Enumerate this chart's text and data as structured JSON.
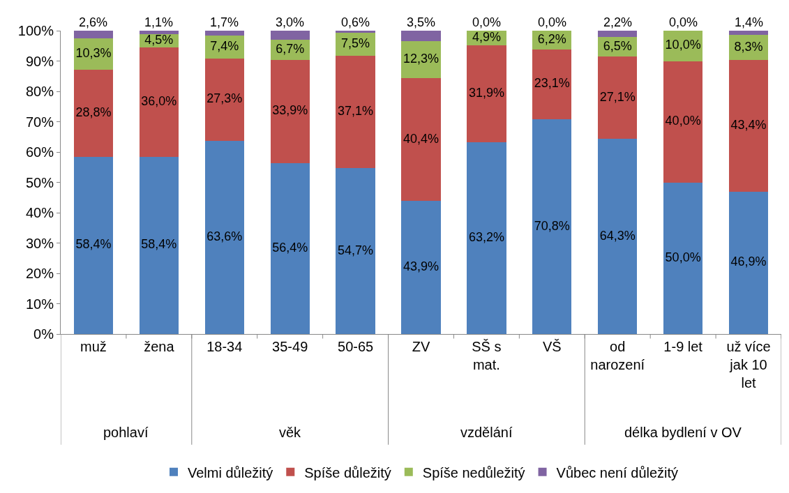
{
  "chart_data": {
    "type": "bar",
    "stacked": true,
    "categories": [
      "muž",
      "žena",
      "18-34",
      "35-49",
      "50-65",
      "ZV",
      "SŠ s mat.",
      "VŠ",
      "od narození",
      "1-9 let",
      "už více jak 10 let"
    ],
    "series": [
      {
        "name": "Velmi důležitý",
        "color": "#4f81bd",
        "values": [
          58.4,
          58.4,
          63.6,
          56.4,
          54.7,
          43.9,
          63.2,
          70.8,
          64.3,
          50.0,
          46.9
        ],
        "value_labels": [
          "58,4%",
          "58,4%",
          "63,6%",
          "56,4%",
          "54,7%",
          "43,9%",
          "63,2%",
          "70,8%",
          "64,3%",
          "50,0%",
          "46,9%"
        ]
      },
      {
        "name": "Spíše důležitý",
        "color": "#c0504d",
        "values": [
          28.8,
          36.0,
          27.3,
          33.9,
          37.1,
          40.4,
          31.9,
          23.1,
          27.1,
          40.0,
          43.4
        ],
        "value_labels": [
          "28,8%",
          "36,0%",
          "27,3%",
          "33,9%",
          "37,1%",
          "40,4%",
          "31,9%",
          "23,1%",
          "27,1%",
          "40,0%",
          "43,4%"
        ]
      },
      {
        "name": "Spíše nedůležitý",
        "color": "#9bbb59",
        "values": [
          10.3,
          4.5,
          7.4,
          6.7,
          7.5,
          12.3,
          4.9,
          6.2,
          6.5,
          10.0,
          8.3
        ],
        "value_labels": [
          "10,3%",
          "4,5%",
          "7,4%",
          "6,7%",
          "7,5%",
          "12,3%",
          "4,9%",
          "6,2%",
          "6,5%",
          "10,0%",
          "8,3%"
        ]
      },
      {
        "name": "Vůbec není důležitý",
        "color": "#8064a2",
        "values": [
          2.6,
          1.1,
          1.7,
          3.0,
          0.6,
          3.5,
          0.0,
          0.0,
          2.2,
          0.0,
          1.4
        ],
        "value_labels": [
          "2,6%",
          "1,1%",
          "1,7%",
          "3,0%",
          "0,6%",
          "3,5%",
          "0,0%",
          "0,0%",
          "2,2%",
          "0,0%",
          "1,4%"
        ]
      }
    ],
    "ylim": [
      0,
      100
    ],
    "yticks": [
      {
        "value": 0,
        "label": "0%"
      },
      {
        "value": 10,
        "label": "10%"
      },
      {
        "value": 20,
        "label": "20%"
      },
      {
        "value": 30,
        "label": "30%"
      },
      {
        "value": 40,
        "label": "40%"
      },
      {
        "value": 50,
        "label": "50%"
      },
      {
        "value": 60,
        "label": "60%"
      },
      {
        "value": 70,
        "label": "70%"
      },
      {
        "value": 80,
        "label": "80%"
      },
      {
        "value": 90,
        "label": "90%"
      },
      {
        "value": 100,
        "label": "100%"
      }
    ],
    "annotations": [
      "pohlaví",
      "věk",
      "vzdělání",
      "délka bydlení v OV"
    ],
    "grid": false,
    "legend": "bottom"
  }
}
